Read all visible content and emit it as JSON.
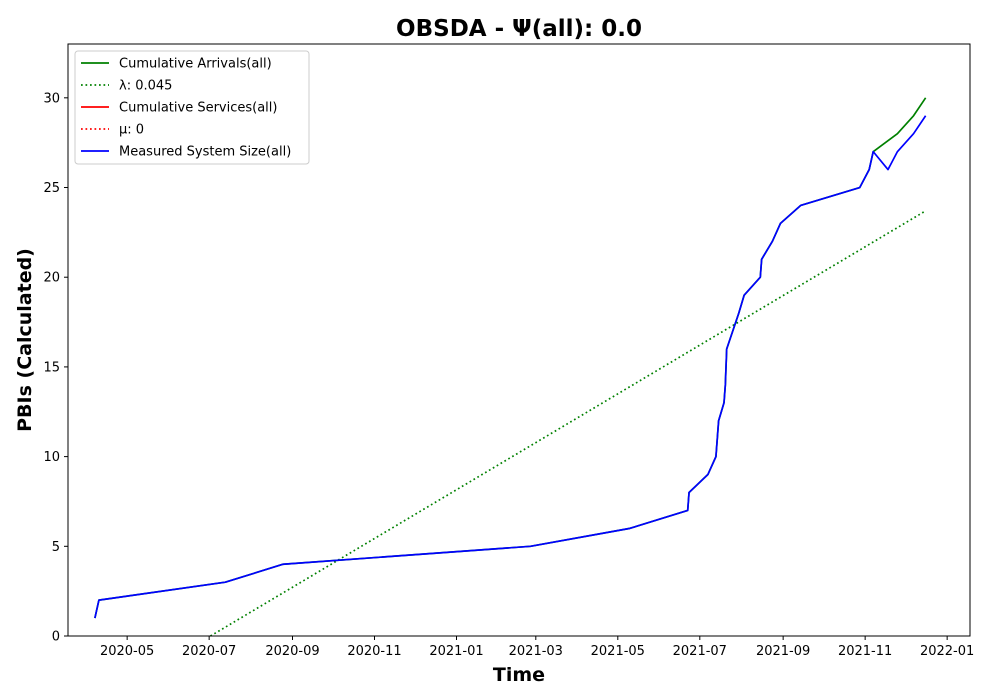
{
  "chart_data": {
    "type": "line",
    "title": "OBSDA -  Ψ(all): 0.0",
    "xlabel": "Time",
    "ylabel": "PBIs (Calculated)",
    "xlim": [
      "2020-03-18",
      "2022-01-18"
    ],
    "ylim": [
      0,
      33
    ],
    "x_ticks": [
      "2020-05-01",
      "2020-07-01",
      "2020-09-01",
      "2020-11-01",
      "2021-01-01",
      "2021-03-01",
      "2021-05-01",
      "2021-07-01",
      "2021-09-01",
      "2021-11-01",
      "2022-01-01"
    ],
    "x_tick_labels": [
      "2020-05",
      "2020-07",
      "2020-09",
      "2020-11",
      "2021-01",
      "2021-03",
      "2021-05",
      "2021-07",
      "2021-09",
      "2021-11",
      "2022-01"
    ],
    "y_ticks": [
      0,
      5,
      10,
      15,
      20,
      25,
      30
    ],
    "y_tick_labels": [
      "0",
      "5",
      "10",
      "15",
      "20",
      "25",
      "30"
    ],
    "grid": false,
    "legend_position": "top-left",
    "series": [
      {
        "name": "Cumulative Arrivals(all)",
        "color": "#008000",
        "style": "solid",
        "points": [
          [
            "2020-04-07",
            1
          ],
          [
            "2020-04-10",
            2
          ],
          [
            "2020-07-13",
            3
          ],
          [
            "2020-08-25",
            4
          ],
          [
            "2021-02-25",
            5
          ],
          [
            "2021-05-10",
            6
          ],
          [
            "2021-06-22",
            7
          ],
          [
            "2021-06-23",
            8
          ],
          [
            "2021-07-07",
            9
          ],
          [
            "2021-07-13",
            10
          ],
          [
            "2021-07-14",
            11
          ],
          [
            "2021-07-15",
            12
          ],
          [
            "2021-07-19",
            13
          ],
          [
            "2021-07-20",
            14
          ],
          [
            "2021-07-21",
            16
          ],
          [
            "2021-07-30",
            18
          ],
          [
            "2021-08-03",
            19
          ],
          [
            "2021-08-15",
            20
          ],
          [
            "2021-08-16",
            21
          ],
          [
            "2021-08-24",
            22
          ],
          [
            "2021-08-30",
            23
          ],
          [
            "2021-09-14",
            24
          ],
          [
            "2021-10-28",
            25
          ],
          [
            "2021-11-04",
            26
          ],
          [
            "2021-11-07",
            27
          ],
          [
            "2021-11-25",
            28
          ],
          [
            "2021-12-07",
            29
          ],
          [
            "2021-12-16",
            30
          ]
        ]
      },
      {
        "name": "λ: 0.045",
        "color": "#008000",
        "style": "dotted",
        "points": [
          [
            "2020-07-02",
            0
          ],
          [
            "2021-12-16",
            23.7
          ]
        ]
      },
      {
        "name": "Cumulative Services(all)",
        "color": "#ff0000",
        "style": "solid",
        "points": []
      },
      {
        "name": "μ: 0",
        "color": "#ff0000",
        "style": "dotted",
        "points": []
      },
      {
        "name": "Measured System Size(all)",
        "color": "#0000ff",
        "style": "solid",
        "points": [
          [
            "2020-04-07",
            1
          ],
          [
            "2020-04-10",
            2
          ],
          [
            "2020-07-13",
            3
          ],
          [
            "2020-08-25",
            4
          ],
          [
            "2021-02-25",
            5
          ],
          [
            "2021-05-10",
            6
          ],
          [
            "2021-06-22",
            7
          ],
          [
            "2021-06-23",
            8
          ],
          [
            "2021-07-07",
            9
          ],
          [
            "2021-07-13",
            10
          ],
          [
            "2021-07-14",
            11
          ],
          [
            "2021-07-15",
            12
          ],
          [
            "2021-07-19",
            13
          ],
          [
            "2021-07-20",
            14
          ],
          [
            "2021-07-21",
            16
          ],
          [
            "2021-07-30",
            18
          ],
          [
            "2021-08-03",
            19
          ],
          [
            "2021-08-15",
            20
          ],
          [
            "2021-08-16",
            21
          ],
          [
            "2021-08-24",
            22
          ],
          [
            "2021-08-30",
            23
          ],
          [
            "2021-09-14",
            24
          ],
          [
            "2021-10-28",
            25
          ],
          [
            "2021-11-04",
            26
          ],
          [
            "2021-11-07",
            27
          ],
          [
            "2021-11-18",
            26
          ],
          [
            "2021-11-25",
            27
          ],
          [
            "2021-12-07",
            28
          ],
          [
            "2021-12-16",
            29
          ]
        ]
      }
    ]
  }
}
